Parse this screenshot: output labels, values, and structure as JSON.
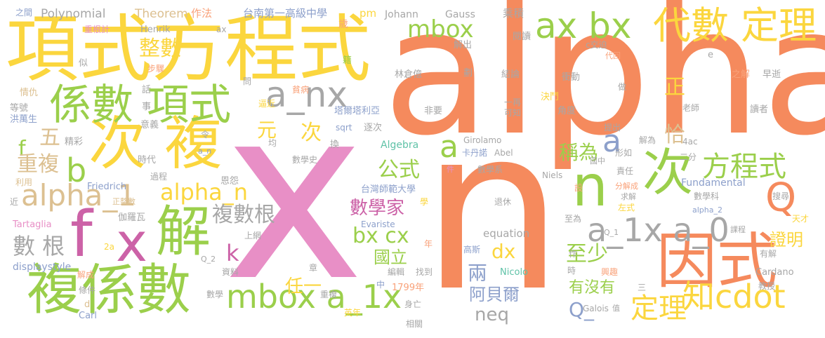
{
  "colors": {
    "background": "#ffffff",
    "orange": "#f58a5d",
    "yellow": "#fbd63e",
    "green": "#9bcf4b",
    "purple": "#cc62a7",
    "pink": "#e88fc6",
    "gray": "#a7a7a7",
    "tan": "#dcc091",
    "slate": "#8da0cb",
    "teal": "#5fc2a7"
  },
  "words": {
    "alpha": "alpha",
    "x": "x",
    "n": "n",
    "xiangshi_fangchengshi": "項式方程式",
    "ci_fu": "次 複",
    "fuxishu_bottom": "複係數",
    "xishu_xiangshi": "係數 項式",
    "f": "f",
    "x_small": "x",
    "jie": "解",
    "yinshi": "因式",
    "ci_right": "次",
    "daishu_dingli": "代數 定理",
    "ax_bx": "ax bx",
    "a_nx": "a_nx",
    "mbox_a_1x": "mbox a_1x",
    "zhi_cdot": "知cdot",
    "dingli": "定理",
    "fangchengshi": "方程式",
    "a_1x_a_0": "a_1x a_0",
    "q": "Q",
    "alpha_1": "alpha_1",
    "alpha_n": "alpha_n",
    "zhengshu": "整數",
    "yuan": "元",
    "ci_mid": "次",
    "gongshi": "公式",
    "fushugen": "複數根",
    "shuxuejia": "數學家",
    "bx_cx": "bx cx",
    "guoli": "國立",
    "zhishao": "至少",
    "aboer": "阿貝爾",
    "liang": "兩",
    "chengwei": "稱為",
    "zheng": "正",
    "qia": "恰",
    "zhengming": "證明",
    "renyi": "任一",
    "you_mei_you": "有沒有",
    "mbox_top": "mbox",
    "b": "b",
    "wu": "五",
    "f_small": "f",
    "chongfu": "重複",
    "shu_gen": "數 根",
    "k": "k",
    "dx": "dx",
    "neq": "neq",
    "q_low": "Q_",
    "a_mid": "a",
    "a_left": "a",
    "polynomial": "Polynomial",
    "theorem": "Theorem",
    "zuofa": "作法",
    "tainan_school": "台南第一高級中學",
    "pm": "pm",
    "johann": "Johann",
    "gauss": "Gauss",
    "chengji": "乘積",
    "zhi_zhi": "之間",
    "chonggenji": "重根計",
    "henrik": "Henrik",
    "ax_small": "ax",
    "sui": "歲",
    "yuedu": "閱讀",
    "jiechu": "解出",
    "jiaopo": "c交迫",
    "daihui": "代回",
    "e": "e",
    "si": "似",
    "buzhou": "步驟",
    "ji": "籍",
    "lin_cangyi": "林倉億",
    "hua": "劃",
    "jielun": "結論",
    "chongdong": "衝動",
    "zhijie": "之解",
    "zaoshi": "早逝",
    "qingchou": "情仇",
    "hua2": "話",
    "pinqiong": "貧病",
    "zuo": "做",
    "dengho": "等號",
    "shi": "事",
    "wen": "問",
    "bisi": "逼近",
    "yizai": "一再",
    "kezhi": "可知",
    "jueduo": "決鬥",
    "jiaodu": "角度",
    "laoshi": "老師",
    "hongwansheng": "洪萬生",
    "yiyi": "意義",
    "talitali": "塔爾塔利亞",
    "feiyao": "非要",
    "duzhe": "讀者",
    "ling": "令",
    "sqrt": "sqrt",
    "zhuci": "逐次",
    "girolamo": "Girolamo",
    "tichu": "提出",
    "jingcai": "精彩",
    "jun": "均",
    "huan": "換",
    "algebra": "Algebra",
    "kadanuo": "卡丹諾",
    "abel": "Abel",
    "xingsi": "形如",
    "jiewei": "解為",
    "c4ac": "4ac",
    "shidai": "時代",
    "a_n_small": "a_n",
    "shuxueshi": "數學史",
    "jian": "件",
    "shuxuexi": "數學系",
    "guozhong": "國中",
    "erfen": "二分",
    "zeren": "責任",
    "guocheng": "過程",
    "eryuan": "恩怨",
    "liyong": "利用",
    "friedrich": "Friedrich",
    "taiwan_normal": "台灣師範大學",
    "niels": "Niels",
    "she": "設",
    "fenjiecheng": "分解成",
    "fundamental": "Fundamental",
    "qiujie": "求解",
    "shuxueke": "數學科",
    "sousuo": "搜尋",
    "jin": "近",
    "zhengzhengshu": "正整數",
    "xue": "學",
    "alpha_2": "alpha_2",
    "tuixiu": "退休",
    "zuoshi": "左式",
    "tiancai": "天才",
    "galuowa": "伽羅瓦",
    "shangwang": "上網",
    "evariste": "Evariste",
    "zhiwei": "至為",
    "tartaglia": "Tartaglia",
    "kecheng": "課程",
    "equation": "equation",
    "q1": "Q_1",
    "n2a": "2a",
    "nian": "年",
    "gaosi": "高斯",
    "youjie": "有解",
    "q2": "Q_2",
    "zuo2": "作",
    "displaystyle": "displaystyle",
    "ziliao": "資料",
    "zhang": "章",
    "bianji": "編輯",
    "nicolo": "Nicolo",
    "jiecheng": "解成",
    "zhaodao": "找到",
    "shi2": "時",
    "xingqu": "興趣",
    "cardano": "Cardano",
    "tiaojian": "條件",
    "zhong": "中",
    "n1799": "1799年",
    "san": "三",
    "jiaoshou": "教授",
    "d": "d",
    "shuxue": "數學",
    "chongfu2": "重複",
    "galois": "Galois",
    "zhi": "值",
    "carl": "Carl",
    "yingnian": "英年",
    "shenwang": "身亡",
    "xiangguan": "相關"
  }
}
